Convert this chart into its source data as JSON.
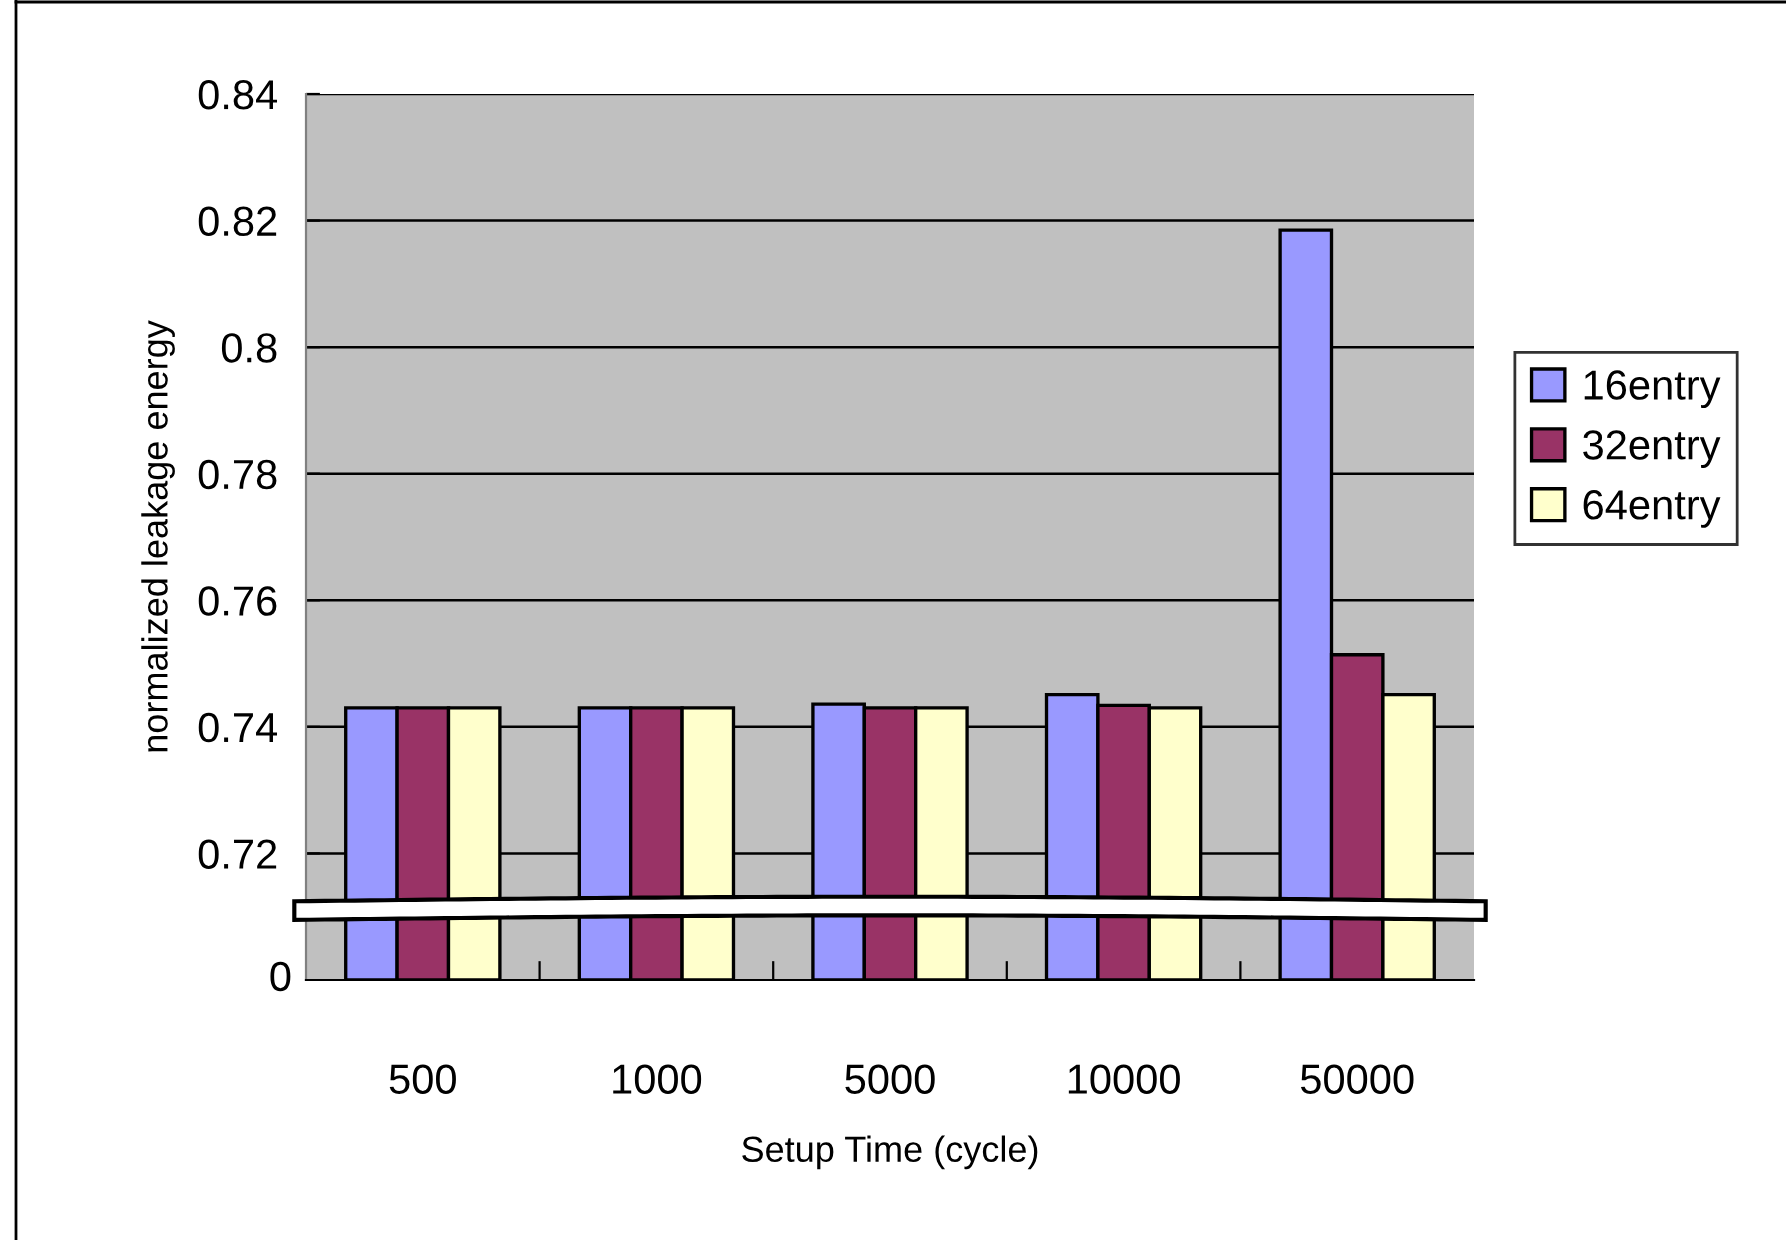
{
  "chart_data": {
    "type": "bar",
    "xlabel": "Setup Time (cycle)",
    "ylabel": "normalized leakage energy",
    "categories": [
      "500",
      "1000",
      "5000",
      "10000",
      "50000"
    ],
    "series": [
      {
        "name": "16entry",
        "color": "#9999ff",
        "values": [
          0.743,
          0.743,
          0.7436,
          0.7451,
          0.8185
        ]
      },
      {
        "name": "32entry",
        "color": "#993366",
        "values": [
          0.743,
          0.743,
          0.743,
          0.7434,
          0.7514
        ]
      },
      {
        "name": "64entry",
        "color": "#ffffcc",
        "values": [
          0.743,
          0.743,
          0.743,
          0.743,
          0.7451
        ]
      }
    ],
    "ylim": [
      0.7,
      0.84
    ],
    "annotations": [
      "0"
    ],
    "yticks": [
      0.72,
      0.74,
      0.76,
      0.78,
      {
        "value": 0.8,
        "label": "0.8"
      },
      0.82,
      0.84
    ],
    "grid": "y",
    "legend": "right"
  }
}
